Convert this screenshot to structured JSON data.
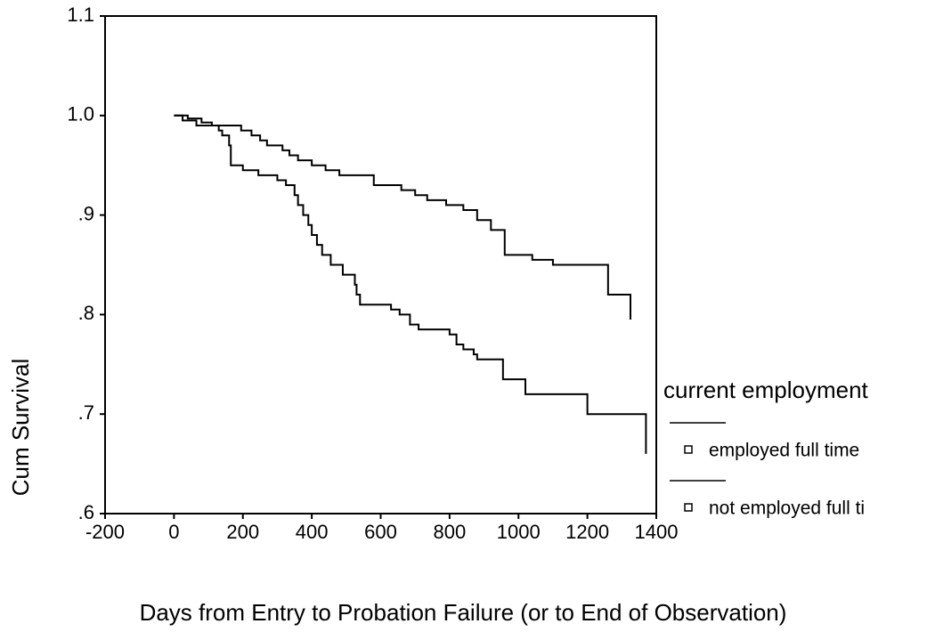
{
  "chart_data": {
    "type": "step",
    "x_label": "Days from Entry to Probation Failure (or to End of Observation)",
    "y_label": "Cum Survival",
    "legend_title": "current employment",
    "legend": "right",
    "xlim": [
      -200,
      1400
    ],
    "xticks": [
      -200,
      0,
      200,
      400,
      600,
      800,
      1000,
      1200,
      1400
    ],
    "ylim": [
      0.6,
      1.1
    ],
    "yticks": [
      {
        "value": 0.6,
        "label": ".6"
      },
      {
        "value": 0.7,
        "label": ".7"
      },
      {
        "value": 0.8,
        "label": ".8"
      },
      {
        "value": 0.9,
        "label": ".9"
      },
      {
        "value": 1,
        "label": "1.0"
      },
      1.1
    ],
    "series": [
      {
        "name": "employed full time",
        "color": "#000000",
        "x": [
          0,
          40,
          80,
          110,
          195,
          225,
          250,
          270,
          315,
          335,
          360,
          400,
          440,
          480,
          580,
          660,
          700,
          735,
          790,
          840,
          880,
          920,
          960,
          1040,
          1100,
          1260,
          1325
        ],
        "values": [
          1,
          0.997,
          0.993,
          0.99,
          0.985,
          0.98,
          0.975,
          0.97,
          0.965,
          0.96,
          0.955,
          0.95,
          0.945,
          0.94,
          0.93,
          0.925,
          0.92,
          0.915,
          0.91,
          0.905,
          0.895,
          0.885,
          0.86,
          0.855,
          0.85,
          0.82,
          0.795
        ]
      },
      {
        "name": "not employed full ti",
        "color": "#000000",
        "x": [
          0,
          25,
          65,
          130,
          140,
          160,
          165,
          200,
          245,
          300,
          325,
          350,
          360,
          375,
          390,
          400,
          415,
          430,
          455,
          490,
          525,
          530,
          540,
          630,
          655,
          685,
          710,
          800,
          820,
          840,
          870,
          880,
          955,
          1020,
          1200,
          1370
        ],
        "values": [
          1,
          0.995,
          0.99,
          0.985,
          0.98,
          0.97,
          0.95,
          0.945,
          0.94,
          0.935,
          0.93,
          0.92,
          0.91,
          0.9,
          0.89,
          0.88,
          0.87,
          0.86,
          0.85,
          0.84,
          0.83,
          0.82,
          0.81,
          0.805,
          0.8,
          0.79,
          0.785,
          0.78,
          0.77,
          0.765,
          0.76,
          0.755,
          0.735,
          0.72,
          0.7,
          0.66
        ]
      }
    ]
  }
}
